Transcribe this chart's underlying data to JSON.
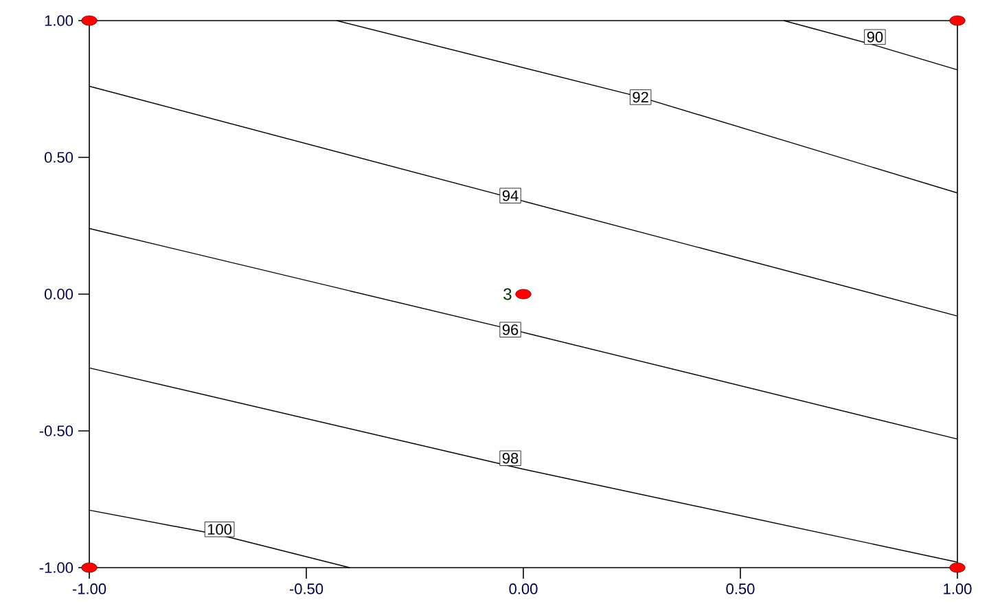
{
  "chart_data": {
    "type": "line",
    "xlim": [
      -1,
      1
    ],
    "ylim": [
      -1,
      1
    ],
    "xticks": [
      {
        "value": -1,
        "label": "-1.00"
      },
      {
        "value": -0.5,
        "label": "-0.50"
      },
      {
        "value": 0,
        "label": "0.00"
      },
      {
        "value": 0.5,
        "label": "0.50"
      },
      {
        "value": 1,
        "label": "1.00"
      }
    ],
    "yticks": [
      {
        "value": -1,
        "label": "-1.00"
      },
      {
        "value": -0.5,
        "label": "-0.50"
      },
      {
        "value": 0,
        "label": "0.00"
      },
      {
        "value": 0.5,
        "label": "0.50"
      },
      {
        "value": 1,
        "label": "1.00"
      }
    ],
    "series": [
      {
        "color": "#000000",
        "x": [
          0.6,
          0.81,
          1
        ],
        "values": [
          1,
          0.91,
          0.82
        ]
      },
      {
        "color": "#000000",
        "x": [
          -0.43,
          0.27,
          1
        ],
        "values": [
          1,
          0.72,
          0.37
        ]
      },
      {
        "color": "#000000",
        "x": [
          -1,
          0,
          1
        ],
        "values": [
          0.76,
          0.34,
          -0.08
        ]
      },
      {
        "color": "#000000",
        "x": [
          -1,
          0,
          1
        ],
        "values": [
          0.24,
          -0.14,
          -0.53
        ]
      },
      {
        "color": "#000000",
        "x": [
          -1,
          0,
          1
        ],
        "values": [
          -0.27,
          -0.64,
          -0.98
        ]
      },
      {
        "color": "#000000",
        "x": [
          -1,
          -0.7,
          -0.4
        ],
        "values": [
          -0.79,
          -0.88,
          -1
        ]
      },
      {
        "type": "scatter",
        "color": "#ff0000",
        "x": [
          -1,
          1,
          0,
          -1,
          1
        ],
        "values": [
          1,
          1,
          0,
          -1,
          -1
        ]
      }
    ],
    "annotations": [
      {
        "text": "90",
        "x": 0.81,
        "y": 0.94
      },
      {
        "text": "92",
        "x": 0.27,
        "y": 0.72
      },
      {
        "text": "94",
        "x": -0.03,
        "y": 0.36
      },
      {
        "text": "96",
        "x": -0.03,
        "y": -0.13
      },
      {
        "text": "98",
        "x": -0.03,
        "y": -0.6
      },
      {
        "text": "100",
        "x": -0.7,
        "y": -0.86
      },
      {
        "text": "3",
        "x": 0,
        "y": 0
      }
    ]
  }
}
